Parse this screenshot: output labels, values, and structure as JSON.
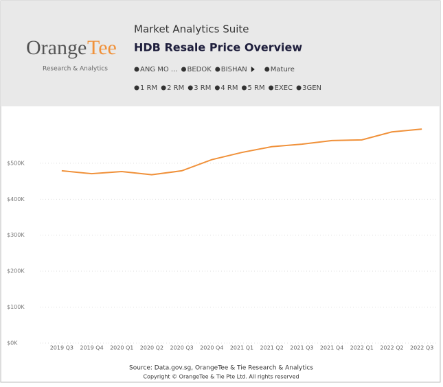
{
  "header": {
    "logo": {
      "first": "Orange",
      "second": "Tee"
    },
    "logo_tagline": "Research & Analytics",
    "suite": "Market Analytics Suite",
    "title": "HDB Resale Price Overview",
    "filters_row1": [
      "ANG MO ...",
      "BEDOK",
      "BISHAN",
      "Mature"
    ],
    "filters_row2": [
      "1 RM",
      "2 RM",
      "3 RM",
      "4 RM",
      "5 RM",
      "EXEC",
      "3GEN"
    ]
  },
  "chart_data": {
    "type": "line",
    "color": "#f0913a",
    "categories": [
      "2019 Q3",
      "2019 Q4",
      "2020 Q1",
      "2020 Q2",
      "2020 Q3",
      "2020 Q4",
      "2021 Q1",
      "2021 Q2",
      "2021 Q3",
      "2021 Q4",
      "2022 Q1",
      "2022 Q2",
      "2022 Q3"
    ],
    "values": [
      479000,
      471000,
      477000,
      468000,
      479000,
      510000,
      530000,
      546000,
      553000,
      563000,
      565000,
      587000,
      595000
    ],
    "ylim": [
      0,
      620000
    ],
    "yticks": [
      {
        "value": 0,
        "label": "$0K"
      },
      {
        "value": 100000,
        "label": "$100K"
      },
      {
        "value": 200000,
        "label": "$200K"
      },
      {
        "value": 300000,
        "label": "$300K"
      },
      {
        "value": 400000,
        "label": "$400K"
      },
      {
        "value": 500000,
        "label": "$500K"
      }
    ],
    "grid": true
  },
  "footer": {
    "source": "Source: Data.gov.sg, OrangeTee & Tie Research & Analytics",
    "copyright": "Copyright © OrangeTee & Tie Pte Ltd. All rights reserved"
  }
}
